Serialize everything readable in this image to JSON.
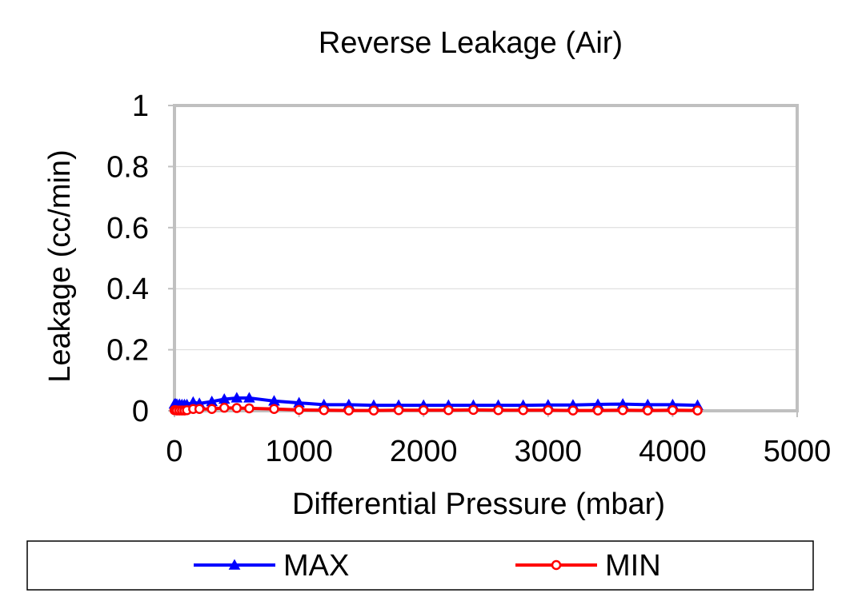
{
  "chart_data": {
    "type": "line",
    "title": "Reverse Leakage (Air)",
    "xlabel": "Differential Pressure (mbar)",
    "ylabel": "Leakage (cc/min)",
    "xlim": [
      0,
      5000
    ],
    "ylim": [
      0,
      1
    ],
    "xticks": [
      0,
      1000,
      2000,
      3000,
      4000,
      5000
    ],
    "xtick_labels": [
      "0",
      "1000",
      "2000",
      "3000",
      "4000",
      "5000"
    ],
    "yticks": [
      0,
      0.2,
      0.4,
      0.6,
      0.8,
      1
    ],
    "ytick_labels": [
      "0",
      "0.2",
      "0.4",
      "0.6",
      "0.8",
      "1"
    ],
    "grid": "horizontal",
    "legend_position": "bottom",
    "series": [
      {
        "name": "MAX",
        "color": "#0000ff",
        "marker": "triangle",
        "x": [
          0,
          10,
          20,
          40,
          60,
          80,
          100,
          150,
          200,
          300,
          400,
          500,
          600,
          800,
          1000,
          1200,
          1400,
          1600,
          1800,
          2000,
          2200,
          2400,
          2600,
          2800,
          3000,
          3200,
          3400,
          3600,
          3800,
          4000,
          4200
        ],
        "y": [
          0.022,
          0.022,
          0.021,
          0.021,
          0.02,
          0.02,
          0.02,
          0.028,
          0.024,
          0.03,
          0.038,
          0.042,
          0.042,
          0.032,
          0.026,
          0.02,
          0.02,
          0.018,
          0.018,
          0.018,
          0.018,
          0.018,
          0.018,
          0.018,
          0.019,
          0.019,
          0.021,
          0.022,
          0.02,
          0.02,
          0.018
        ]
      },
      {
        "name": "MIN",
        "color": "#ff0000",
        "marker": "circle",
        "x": [
          0,
          10,
          20,
          40,
          60,
          80,
          100,
          150,
          200,
          300,
          400,
          500,
          600,
          800,
          1000,
          1200,
          1400,
          1600,
          1800,
          2000,
          2200,
          2400,
          2600,
          2800,
          3000,
          3200,
          3400,
          3600,
          3800,
          4000,
          4200
        ],
        "y": [
          0.002,
          0.002,
          0.001,
          0.001,
          0.001,
          0.001,
          0.002,
          0.006,
          0.006,
          0.006,
          0.01,
          0.009,
          0.008,
          0.006,
          0.003,
          0.002,
          0.001,
          0.001,
          0.002,
          0.002,
          0.002,
          0.003,
          0.002,
          0.002,
          0.002,
          0.001,
          0.001,
          0.002,
          0.001,
          0.002,
          0.001
        ]
      }
    ]
  }
}
